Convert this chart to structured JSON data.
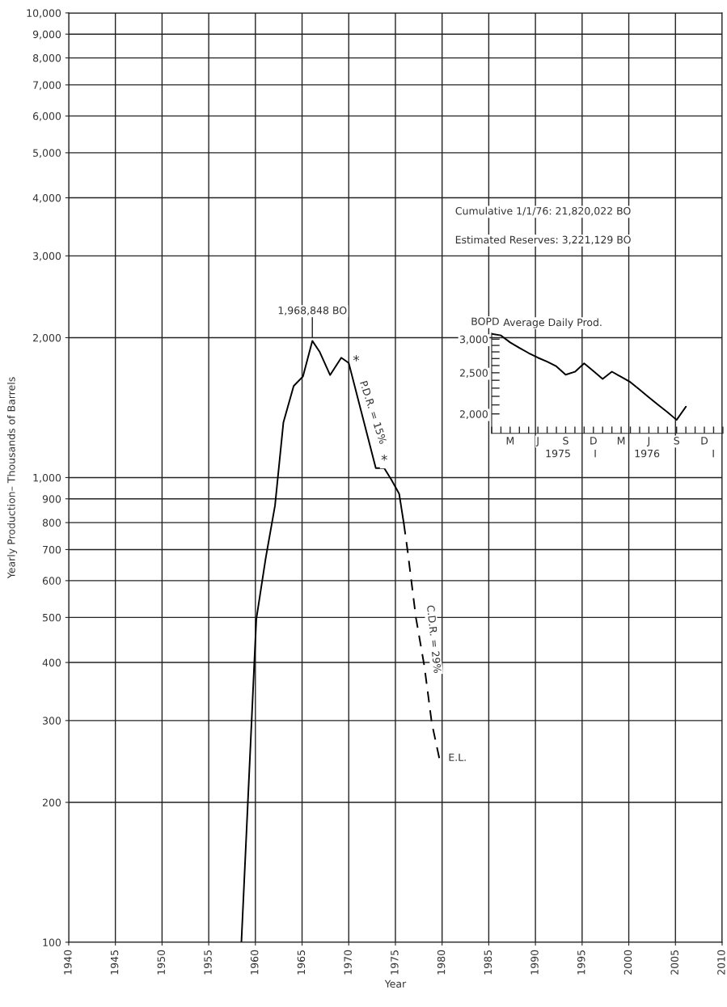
{
  "chart_data": [
    {
      "type": "line",
      "xlabel": "Year",
      "ylabel": "Yearly Production– Thousands of Barrels",
      "log": "y",
      "grid": true,
      "xlim": [
        1940,
        2010
      ],
      "xticks": [
        1940,
        1945,
        1950,
        1955,
        1960,
        1965,
        1970,
        1975,
        1980,
        1985,
        1990,
        1995,
        2000,
        2005,
        2010
      ],
      "ylim": [
        100,
        10000
      ],
      "yticks": [
        100,
        200,
        300,
        400,
        500,
        600,
        700,
        800,
        900,
        {
          "value": 1000,
          "label": "1,000"
        },
        {
          "value": 2000,
          "label": "2,000"
        },
        {
          "value": 3000,
          "label": "3,000"
        },
        {
          "value": 4000,
          "label": "4,000"
        },
        {
          "value": 5000,
          "label": "5,000"
        },
        {
          "value": 6000,
          "label": "6,000"
        },
        {
          "value": 7000,
          "label": "7,000"
        },
        {
          "value": 8000,
          "label": "8,000"
        },
        {
          "value": 9000,
          "label": "9,000"
        },
        {
          "value": 10000,
          "label": "10,000"
        }
      ],
      "series": [
        {
          "color": "#000000",
          "line_style": "solid",
          "x": [
            1958.5,
            1960.1,
            1961.1,
            1962.1,
            1963.0,
            1964.1,
            1965.1,
            1966.1,
            1966.9,
            1968.0,
            1969.2,
            1970.0,
            1972.9,
            1973.8,
            1974.6,
            1975.4,
            1975.9
          ],
          "values": [
            100,
            496,
            670,
            870,
            1314,
            1574,
            1651,
            1969,
            1862,
            1662,
            1811,
            1764,
            1048,
            1048,
            987,
            923,
            797
          ]
        },
        {
          "color": "#000000",
          "line_style": "dashed",
          "x": [
            1975.9,
            1976.3,
            1977.2,
            1978.1,
            1978.9,
            1979.7
          ],
          "values": [
            797,
            697,
            499,
            393,
            296,
            249
          ]
        }
      ],
      "annotations": [
        {
          "text": "1,968,848 BO",
          "x": 1966.1,
          "y": 1969
        },
        "*",
        "P.D.R. = 15%",
        "*",
        "C.D.R. = 29%",
        {
          "text": "E.L.",
          "x": 1979.7,
          "y": 249
        },
        "Cumulative 1/1/76: 21,820,022 BO",
        "Estimated Reserves: 3,221,129 BO"
      ]
    },
    {
      "type": "line",
      "title": "Average Daily Prod.",
      "ylabel": "BOPD",
      "log": "y",
      "color": "#000000",
      "categories": [
        null,
        null,
        "M",
        null,
        null,
        "J",
        null,
        null,
        "S",
        null,
        null,
        "D",
        null,
        null,
        "M",
        null,
        null,
        "J",
        null,
        null,
        "S",
        null,
        null,
        "D",
        null,
        null
      ],
      "values": [
        3088,
        3062,
        2947,
        2860,
        2782,
        2713,
        2655,
        2588,
        2474,
        2513,
        2630,
        2523,
        2418,
        2515,
        2445,
        2376,
        2281,
        2187,
        2100,
        2020,
        1936,
        2079,
        null,
        null,
        null,
        null
      ],
      "ylim": [
        1800,
        3100
      ],
      "yticks": [
        {
          "value": 2000,
          "label": "2,000"
        },
        {
          "value": 2100,
          "label": null
        },
        {
          "value": 2200,
          "label": null
        },
        {
          "value": 2300,
          "label": null
        },
        {
          "value": 2400,
          "label": null
        },
        {
          "value": 2500,
          "label": "2,500"
        },
        {
          "value": 2600,
          "label": null
        },
        {
          "value": 2700,
          "label": null
        },
        {
          "value": 2800,
          "label": null
        },
        {
          "value": 2900,
          "label": null
        },
        {
          "value": 3000,
          "label": "3,000"
        }
      ],
      "annotations": [
        "1975",
        "I",
        "1976",
        "I"
      ]
    }
  ]
}
